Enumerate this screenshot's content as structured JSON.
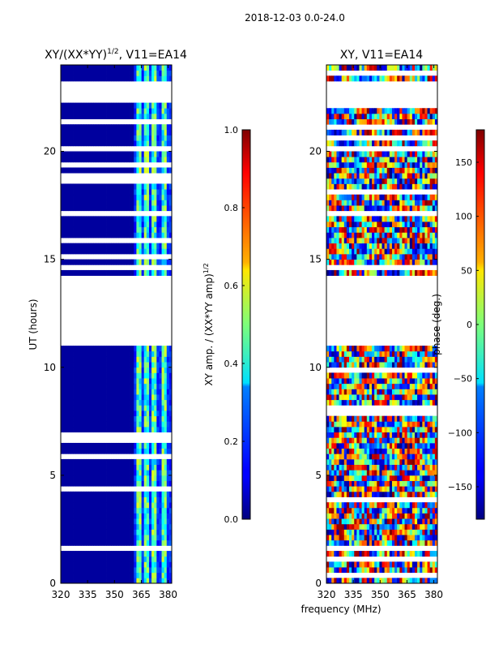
{
  "figure_title": "2018-12-03 0.0-24.0",
  "shared_xlabel": "frequency (MHz)",
  "chart_data": [
    {
      "type": "heatmap",
      "id": "amp",
      "title": "XY/(XX*YY)",
      "title_exponent": "1/2",
      "title_suffix": ", V11=EA14",
      "xlabel": "",
      "ylabel": "UT (hours)",
      "xlim": [
        320,
        382
      ],
      "ylim": [
        0,
        24
      ],
      "xticks": [
        320,
        335,
        350,
        365,
        380
      ],
      "yticks": [
        0,
        5,
        10,
        15,
        20
      ],
      "colormap": "jet",
      "colorbar": {
        "label": "XY amp. / (XX*YY amp)",
        "label_exponent": "1/2",
        "range": [
          0.0,
          1.0
        ],
        "ticks": [
          "0.0",
          "0.2",
          "0.4",
          "0.6",
          "0.8",
          "1.0"
        ],
        "tick_values": [
          0.0,
          0.2,
          0.4,
          0.6,
          0.8,
          1.0
        ]
      },
      "gap_time_ranges_hours": [
        [
          10.9,
          14.2
        ],
        [
          22.3,
          23.3
        ],
        [
          19.9,
          20.2
        ],
        [
          16.9,
          17.2
        ]
      ],
      "bright_frequency_bands_mhz": [
        [
          362,
          365
        ],
        [
          366,
          369
        ],
        [
          371,
          373
        ],
        [
          376,
          379
        ]
      ]
    },
    {
      "type": "heatmap",
      "id": "phase",
      "title": "XY, V11=EA14",
      "xlabel": "",
      "ylabel": "",
      "xlim": [
        320,
        382
      ],
      "ylim": [
        0,
        24
      ],
      "xticks": [
        320,
        335,
        350,
        365,
        380
      ],
      "yticks": [
        0,
        5,
        10,
        15,
        20
      ],
      "colormap": "jet",
      "colorbar": {
        "label": "phase (deg.)",
        "range": [
          -180,
          180
        ],
        "ticks": [
          "−150",
          "−100",
          "−50",
          "0",
          "50",
          "100",
          "150"
        ],
        "tick_values": [
          -150,
          -100,
          -50,
          0,
          50,
          100,
          150
        ]
      },
      "gap_time_ranges_hours": [
        [
          10.9,
          14.2
        ],
        [
          22.3,
          23.3
        ],
        [
          19.9,
          20.2
        ],
        [
          16.9,
          17.2
        ]
      ]
    }
  ]
}
